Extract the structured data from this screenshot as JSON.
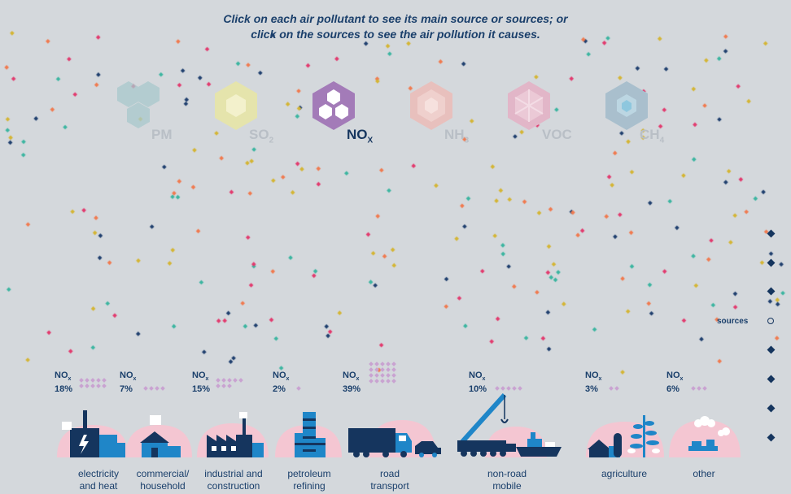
{
  "instructions": {
    "line1": "Click on each air pollutant to see its main source or sources; or",
    "line2": "click on the sources to see the air pollution it causes."
  },
  "pollutants": [
    {
      "id": "pm",
      "base": "PM",
      "sub": "",
      "color": "#a9c9cc",
      "active": false
    },
    {
      "id": "so2",
      "base": "SO",
      "sub": "2",
      "color": "#e7e6a3",
      "active": false
    },
    {
      "id": "nox",
      "base": "NO",
      "sub": "X",
      "color": "#a37bb8",
      "active": true
    },
    {
      "id": "nh3",
      "base": "NH",
      "sub": "3",
      "color": "#e8c0bd",
      "active": false
    },
    {
      "id": "voc",
      "base": "VOC",
      "sub": "",
      "color": "#e2b6c8",
      "active": false
    },
    {
      "id": "ch4",
      "base": "CH",
      "sub": "4",
      "color": "#a9bfcd",
      "active": false
    }
  ],
  "share_prefix": "NO",
  "share_sub": "x",
  "sources": [
    {
      "id": "electricity",
      "line1": "electricity",
      "line2": "and heat",
      "share": "18%",
      "dots": 10
    },
    {
      "id": "commercial",
      "line1": "commercial/",
      "line2": "household",
      "share": "7%",
      "dots": 4
    },
    {
      "id": "industrial",
      "line1": "industrial and",
      "line2": "construction",
      "share": "15%",
      "dots": 8
    },
    {
      "id": "petroleum",
      "line1": "petroleum",
      "line2": "refining",
      "share": "2%",
      "dots": 1
    },
    {
      "id": "road",
      "line1": "road",
      "line2": "transport",
      "share": "39%",
      "dots": 20
    },
    {
      "id": "nonroad",
      "line1": "non-road",
      "line2": "mobile",
      "share": "10%",
      "dots": 5
    },
    {
      "id": "agriculture",
      "line1": "agriculture",
      "line2": "",
      "share": "3%",
      "dots": 2
    },
    {
      "id": "other",
      "line1": "other",
      "line2": "",
      "share": "6%",
      "dots": 3
    }
  ],
  "nav": {
    "label": "sources",
    "active_index": 4,
    "count": 8
  },
  "colors": {
    "navy": "#15355e",
    "blue": "#1f86c8",
    "pink": "#f4c6d2",
    "dot": "#c9a3d1"
  }
}
